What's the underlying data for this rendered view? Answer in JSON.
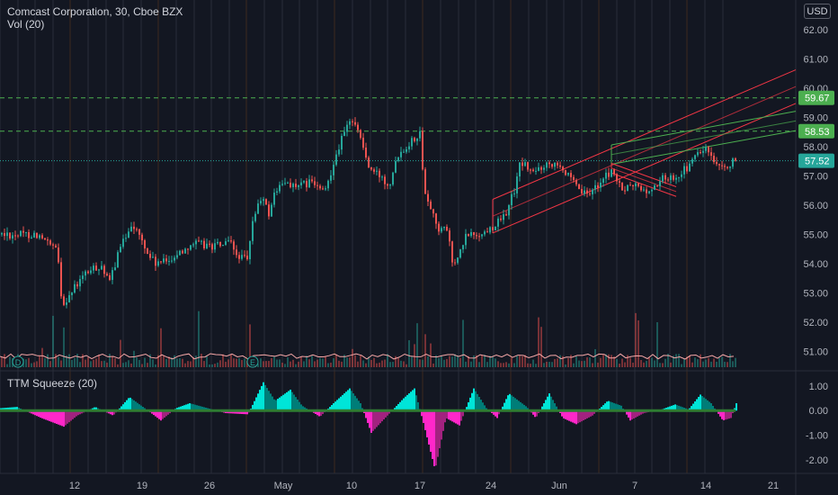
{
  "header": {
    "title": "Comcast Corporation, 30, Cboe BZX",
    "volume": "Vol (20)",
    "currency": "USD"
  },
  "indicator": {
    "title": "TTM Squeeze (20)"
  },
  "markers": {
    "dividend": "D",
    "earnings": "E"
  },
  "colors": {
    "background": "#131722",
    "up": "#26a69a",
    "down": "#ef5350",
    "squeeze_pos_strong": "#00e5d8",
    "squeeze_pos_weak": "#007d78",
    "squeeze_neg_strong": "#ff27c9",
    "squeeze_neg_weak": "#a2227f",
    "channel_red": "#f23645",
    "channel_green": "#4caf50",
    "last_price": "#26a69a"
  },
  "chart_data": [
    {
      "type": "candlestick",
      "price_axis": {
        "min": 50.4,
        "max": 62.4,
        "ticks": [
          "62.00",
          "61.00",
          "60.00",
          "59.00",
          "58.00",
          "57.00",
          "56.00",
          "55.00",
          "54.00",
          "53.00",
          "52.00",
          "51.00"
        ]
      },
      "time_axis": {
        "labels": [
          "12",
          "19",
          "26",
          "May",
          "10",
          "17",
          "24",
          "Jun",
          "7",
          "14",
          "21"
        ]
      },
      "price_labels": [
        {
          "value": 59.67,
          "text": "59.67",
          "kind": "green"
        },
        {
          "value": 58.53,
          "text": "58.53",
          "kind": "green"
        },
        {
          "value": 57.52,
          "text": "57.52",
          "kind": "teal"
        }
      ],
      "horizontal_lines": [
        59.67,
        58.53,
        57.52
      ],
      "path": [
        [
          0,
          55.0
        ],
        [
          40,
          55.0
        ],
        [
          63,
          54.4
        ],
        [
          68,
          52.6
        ],
        [
          95,
          53.7
        ],
        [
          112,
          53.95
        ],
        [
          120,
          53.3
        ],
        [
          130,
          54.3
        ],
        [
          145,
          55.4
        ],
        [
          155,
          54.9
        ],
        [
          162,
          54.4
        ],
        [
          172,
          54.0
        ],
        [
          182,
          54.05
        ],
        [
          200,
          54.4
        ],
        [
          212,
          54.7
        ],
        [
          235,
          54.6
        ],
        [
          255,
          54.7
        ],
        [
          262,
          54.3
        ],
        [
          275,
          54.1
        ],
        [
          280,
          55.5
        ],
        [
          290,
          56.3
        ],
        [
          298,
          55.7
        ],
        [
          305,
          56.5
        ],
        [
          318,
          56.8
        ],
        [
          330,
          56.6
        ],
        [
          345,
          56.8
        ],
        [
          360,
          56.4
        ],
        [
          372,
          57.7
        ],
        [
          382,
          58.5
        ],
        [
          392,
          59.0
        ],
        [
          400,
          58.3
        ],
        [
          410,
          57.2
        ],
        [
          422,
          57.0
        ],
        [
          432,
          56.7
        ],
        [
          440,
          57.7
        ],
        [
          450,
          58.0
        ],
        [
          466,
          58.5
        ],
        [
          470,
          56.7
        ],
        [
          476,
          56.1
        ],
        [
          488,
          55.1
        ],
        [
          496,
          55.2
        ],
        [
          503,
          53.9
        ],
        [
          510,
          54.3
        ],
        [
          518,
          55.0
        ],
        [
          535,
          55.0
        ],
        [
          548,
          55.3
        ],
        [
          560,
          55.6
        ],
        [
          572,
          56.6
        ],
        [
          578,
          57.5
        ],
        [
          592,
          57.1
        ],
        [
          605,
          57.4
        ],
        [
          620,
          57.5
        ],
        [
          628,
          57.1
        ],
        [
          640,
          56.6
        ],
        [
          652,
          56.3
        ],
        [
          660,
          56.6
        ],
        [
          670,
          56.9
        ],
        [
          680,
          57.2
        ],
        [
          690,
          56.5
        ],
        [
          705,
          56.7
        ],
        [
          720,
          56.4
        ],
        [
          735,
          56.9
        ],
        [
          750,
          57.0
        ],
        [
          765,
          57.3
        ],
        [
          775,
          57.8
        ],
        [
          785,
          57.9
        ],
        [
          795,
          57.3
        ],
        [
          803,
          57.2
        ],
        [
          810,
          57.4
        ],
        [
          817,
          57.52
        ]
      ],
      "channels": [
        {
          "name": "",
          "from": [
            548,
            55.05
          ],
          "to": [
            885,
            59.48
          ],
          "offset": 1.15,
          "color": "red"
        },
        {
          "name": "",
          "from": [
            680,
            57.4
          ],
          "to": [
            885,
            58.55
          ],
          "offset": 0.66,
          "color": "green"
        },
        {
          "name": "",
          "from": [
            680,
            57.1
          ],
          "to": [
            752,
            56.3
          ],
          "offset": 0.33,
          "color": "red"
        }
      ]
    },
    {
      "type": "histogram",
      "title": "TTM Squeeze (20)",
      "value_axis": {
        "min": -2.4,
        "max": 1.25,
        "ticks": [
          "1.00",
          "0.00",
          "-1.00",
          "-2.00"
        ]
      },
      "waves": [
        [
          0,
          0.1
        ],
        [
          18,
          0.15
        ],
        [
          45,
          -0.3
        ],
        [
          70,
          -0.65
        ],
        [
          85,
          -0.2
        ],
        [
          105,
          0.15
        ],
        [
          125,
          -0.2
        ],
        [
          143,
          0.55
        ],
        [
          160,
          0.1
        ],
        [
          178,
          -0.4
        ],
        [
          195,
          0.1
        ],
        [
          210,
          0.3
        ],
        [
          230,
          0.1
        ],
        [
          250,
          -0.1
        ],
        [
          275,
          -0.15
        ],
        [
          292,
          1.15
        ],
        [
          305,
          0.4
        ],
        [
          322,
          0.85
        ],
        [
          335,
          0.2
        ],
        [
          355,
          -0.25
        ],
        [
          370,
          0.3
        ],
        [
          388,
          0.9
        ],
        [
          400,
          0.3
        ],
        [
          412,
          -0.9
        ],
        [
          430,
          -0.2
        ],
        [
          448,
          0.5
        ],
        [
          460,
          0.9
        ],
        [
          470,
          -0.5
        ],
        [
          483,
          -2.4
        ],
        [
          495,
          -0.3
        ],
        [
          510,
          -0.6
        ],
        [
          526,
          0.9
        ],
        [
          540,
          0.1
        ],
        [
          552,
          -0.3
        ],
        [
          565,
          0.7
        ],
        [
          585,
          0.15
        ],
        [
          595,
          -0.3
        ],
        [
          610,
          0.7
        ],
        [
          625,
          -0.3
        ],
        [
          640,
          -0.55
        ],
        [
          658,
          -0.2
        ],
        [
          675,
          0.4
        ],
        [
          690,
          0.2
        ],
        [
          700,
          -0.4
        ],
        [
          715,
          -0.1
        ],
        [
          735,
          0.05
        ],
        [
          750,
          0.25
        ],
        [
          765,
          0.05
        ],
        [
          778,
          0.65
        ],
        [
          790,
          0.3
        ],
        [
          803,
          -0.4
        ],
        [
          812,
          -0.3
        ],
        [
          818,
          0.3
        ]
      ]
    }
  ]
}
